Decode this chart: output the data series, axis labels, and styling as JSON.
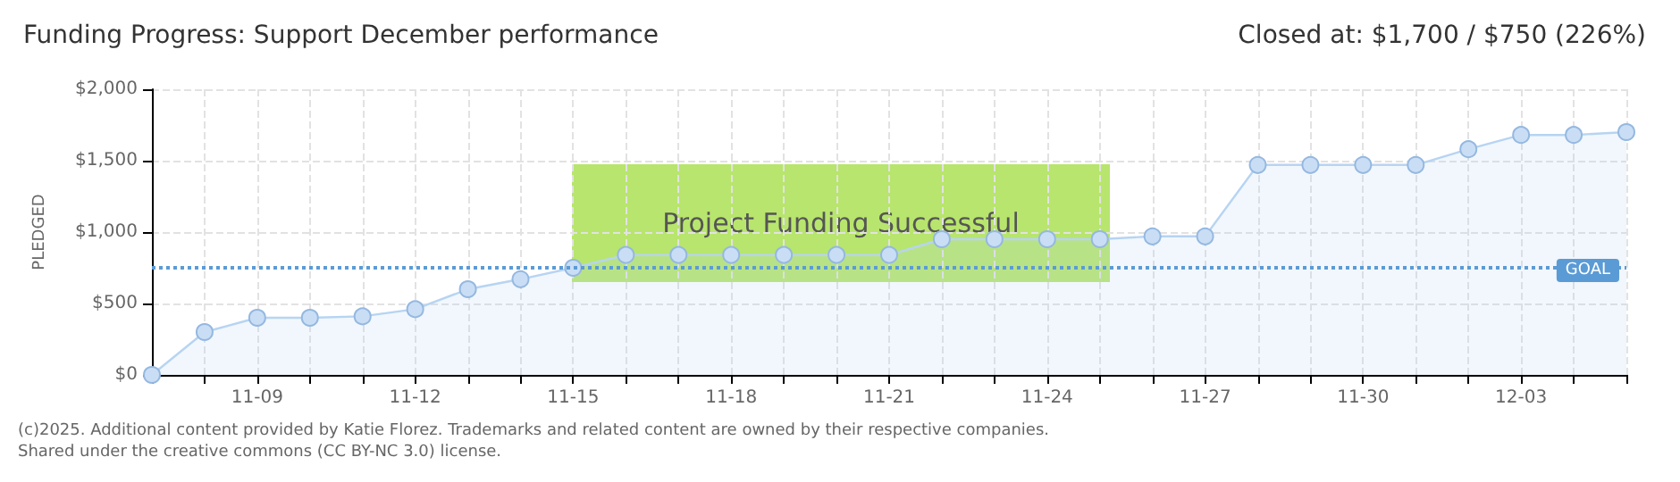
{
  "chart_data": {
    "type": "area",
    "title": "Funding Progress: Support December performance",
    "subtitle": "Closed at: $1,700 / $750 (226%)",
    "ylabel": "PLEDGED",
    "categories": [
      null,
      null,
      "11-09",
      null,
      null,
      "11-12",
      null,
      null,
      "11-15",
      null,
      null,
      "11-18",
      null,
      null,
      "11-21",
      null,
      null,
      "11-24",
      null,
      null,
      "11-27",
      null,
      null,
      "11-30",
      null,
      null,
      "12-03",
      null,
      null
    ],
    "series": [
      {
        "color": "#b7d4f2",
        "values": [
          0,
          300,
          400,
          400,
          410,
          460,
          600,
          670,
          750,
          840,
          840,
          840,
          840,
          840,
          840,
          950,
          950,
          950,
          950,
          970,
          970,
          1470,
          1470,
          1470,
          1470,
          1580,
          1680,
          1680,
          1700
        ]
      }
    ],
    "ylim": [
      0,
      2000
    ],
    "yticks": [
      {
        "value": 0,
        "label": "$0"
      },
      {
        "value": 500,
        "label": "$500"
      },
      {
        "value": 1000,
        "label": "$1,000"
      },
      {
        "value": 1500,
        "label": "$1,500"
      },
      {
        "value": 2000,
        "label": "$2,000"
      }
    ],
    "ref_lines": [
      {
        "axis": "y",
        "value": 750,
        "label": "GOAL",
        "color": "#5b9bd5",
        "line_style": "dotted"
      }
    ],
    "annotations": [
      "Project Funding Successful",
      "(c)2025. Additional content provided by Katie Florez. Trademarks and related content are owned by their respective companies.",
      "Shared under the creative commons (CC BY-NC 3.0) license."
    ],
    "grid": true,
    "marker": "circle",
    "line_style": "solid"
  }
}
